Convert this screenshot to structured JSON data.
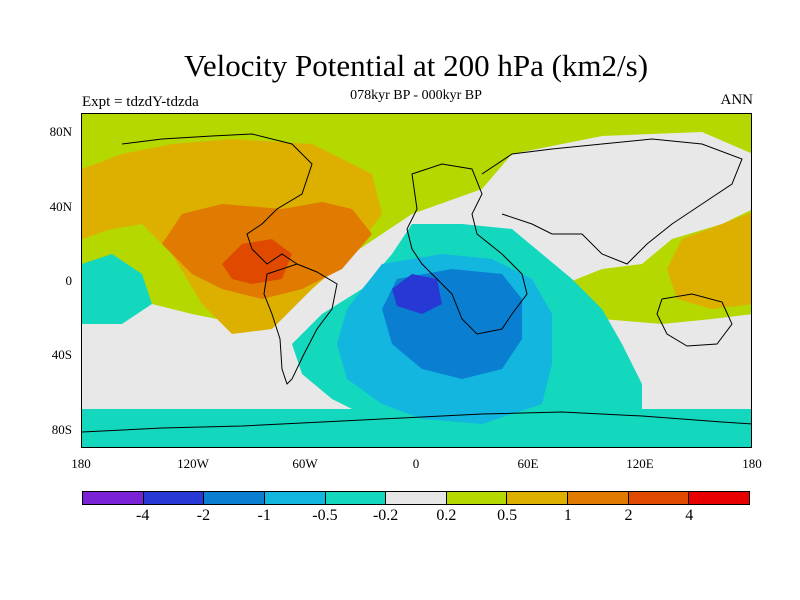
{
  "title": "Velocity Potential at 200 hPa (km2/s)",
  "subtitle": "078kyr BP - 000kyr BP",
  "left_label": "Expt = tdzdY-tdzda",
  "right_label": "ANN",
  "lat_ticks": [
    "80N",
    "40N",
    "0",
    "40S",
    "80S"
  ],
  "lon_ticks": [
    "180",
    "120W",
    "60W",
    "0",
    "60E",
    "120E",
    "180"
  ],
  "colorbar": {
    "colors": [
      "#7a22d6",
      "#2838d4",
      "#0a7fd2",
      "#12b6df",
      "#14d8bd",
      "#e6e6e6",
      "#b4d800",
      "#ddb000",
      "#e07a00",
      "#e04a00",
      "#e80000"
    ],
    "labels": [
      "-4",
      "-2",
      "-1",
      "-0.5",
      "-0.2",
      "0.2",
      "0.5",
      "1",
      "2",
      "4"
    ]
  }
}
